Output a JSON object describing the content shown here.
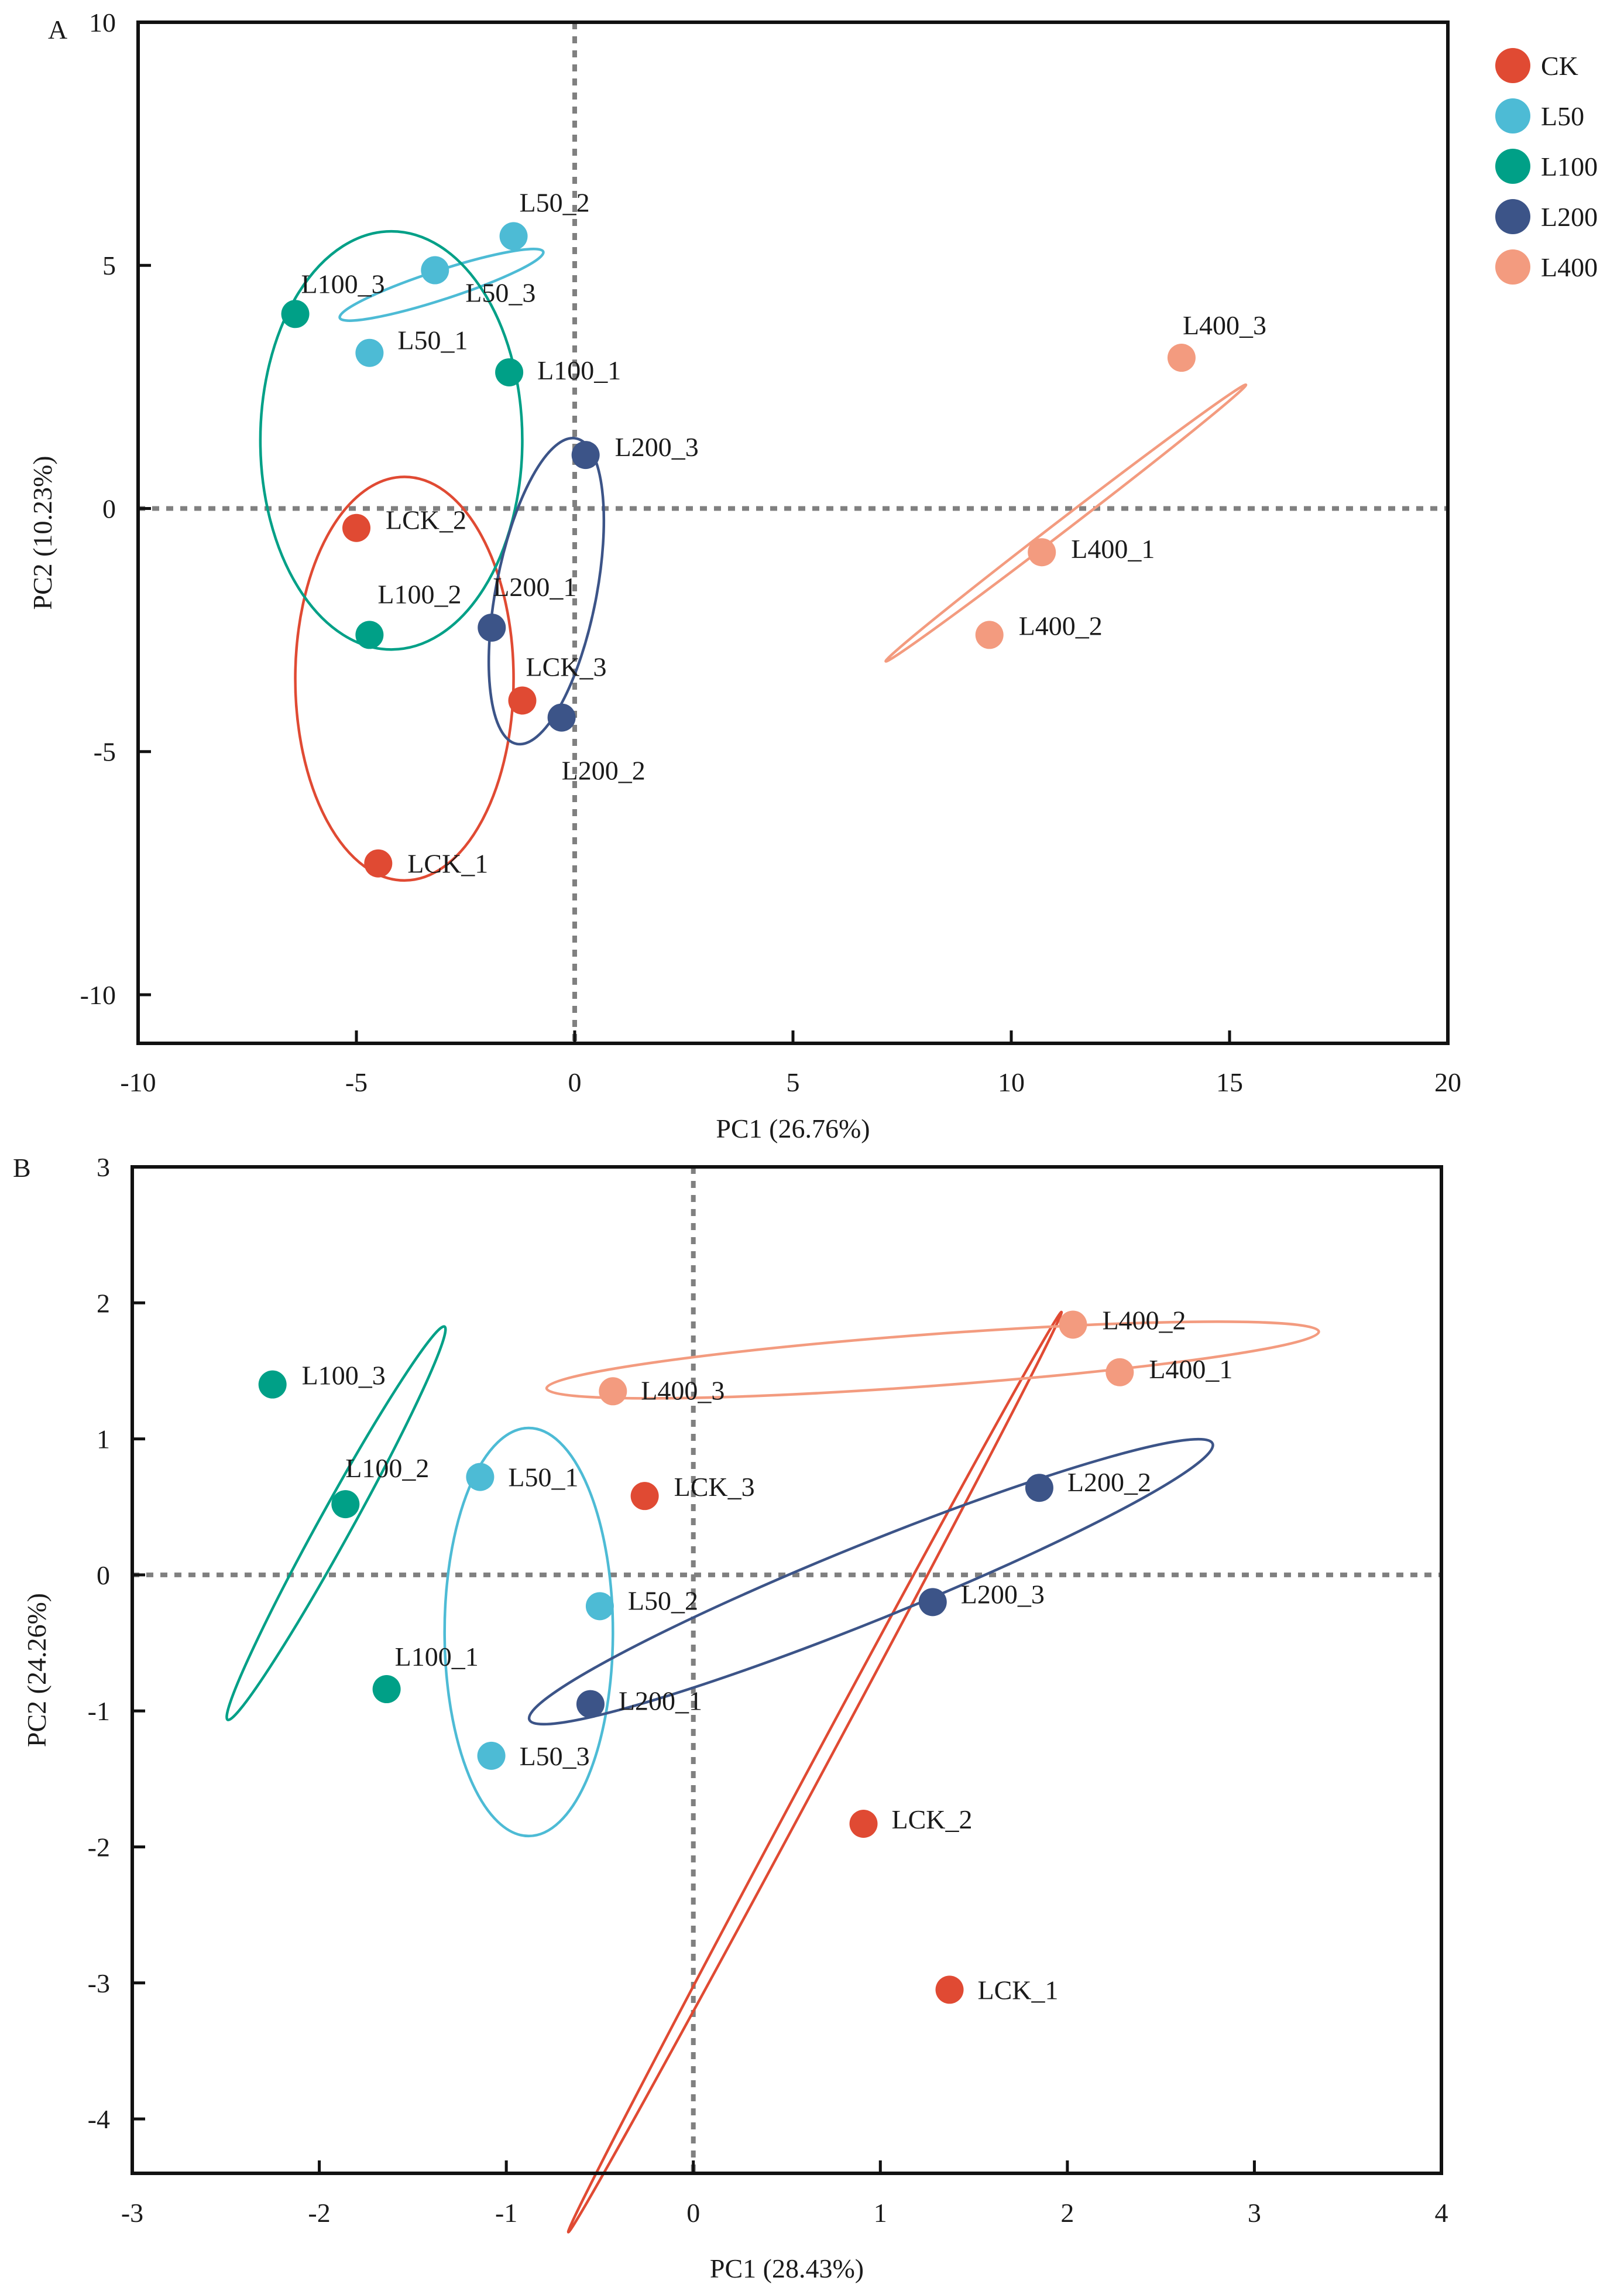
{
  "colors": {
    "CK": "#E04A33",
    "L50": "#4DBBD5",
    "L100": "#00A087",
    "L200": "#3C5488",
    "L400": "#F39B7F"
  },
  "legend": {
    "placement": "right-of-panel-A",
    "items": [
      {
        "group": "CK",
        "label": "CK"
      },
      {
        "group": "L50",
        "label": "L50"
      },
      {
        "group": "L100",
        "label": "L100"
      },
      {
        "group": "L200",
        "label": "L200"
      },
      {
        "group": "L400",
        "label": "L400"
      }
    ]
  },
  "chart_data": [
    {
      "type": "scatter",
      "panel_label": "A",
      "xlabel": "PC1 (26.76%)",
      "ylabel": "PC2 (10.23%)",
      "xlim": [
        -10,
        20
      ],
      "ylim": [
        -11,
        10
      ],
      "xticks": [
        -10,
        -5,
        0,
        5,
        10,
        15,
        20
      ],
      "xtick_labels": [
        "-10",
        "-5",
        "0",
        "5",
        "10",
        "15",
        "20"
      ],
      "yticks": [
        -10,
        -5,
        0,
        5,
        10
      ],
      "ytick_labels": [
        "-10",
        "-5",
        "0",
        "5",
        "10"
      ],
      "reference_lines": {
        "x": 0,
        "y": 0,
        "style": "dotted"
      },
      "points": [
        {
          "label": "LCK_1",
          "group": "CK",
          "x": -4.5,
          "y": -7.3
        },
        {
          "label": "LCK_2",
          "group": "CK",
          "x": -5.0,
          "y": -0.4
        },
        {
          "label": "LCK_3",
          "group": "CK",
          "x": -1.2,
          "y": -3.95
        },
        {
          "label": "L50_1",
          "group": "L50",
          "x": -4.7,
          "y": 3.2
        },
        {
          "label": "L50_2",
          "group": "L50",
          "x": -1.4,
          "y": 5.6
        },
        {
          "label": "L50_3",
          "group": "L50",
          "x": -3.2,
          "y": 4.9
        },
        {
          "label": "L100_1",
          "group": "L100",
          "x": -1.5,
          "y": 2.8
        },
        {
          "label": "L100_2",
          "group": "L100",
          "x": -4.7,
          "y": -2.6
        },
        {
          "label": "L100_3",
          "group": "L100",
          "x": -6.4,
          "y": 4.0
        },
        {
          "label": "L200_1",
          "group": "L200",
          "x": -1.9,
          "y": -2.45
        },
        {
          "label": "L200_2",
          "group": "L200",
          "x": -0.3,
          "y": -4.3
        },
        {
          "label": "L200_3",
          "group": "L200",
          "x": 0.25,
          "y": 1.1
        },
        {
          "label": "L400_1",
          "group": "L400",
          "x": 10.7,
          "y": -0.9
        },
        {
          "label": "L400_2",
          "group": "L400",
          "x": 9.5,
          "y": -2.6
        },
        {
          "label": "L400_3",
          "group": "L400",
          "x": 13.9,
          "y": 3.1
        }
      ],
      "ellipses": [
        {
          "group": "CK",
          "cx": -3.9,
          "cy": -3.5,
          "rx": 2.5,
          "ry": 4.15,
          "angle": 0
        },
        {
          "group": "L50",
          "cx": -3.05,
          "cy": 4.6,
          "rx": 2.45,
          "ry": 0.3,
          "angle": -18
        },
        {
          "group": "L100",
          "cx": -4.2,
          "cy": 1.4,
          "rx": 3.0,
          "ry": 4.3,
          "angle": 0
        },
        {
          "group": "L200",
          "cx": -0.65,
          "cy": -1.7,
          "rx": 1.15,
          "ry": 3.2,
          "angle": 11
        },
        {
          "group": "L400",
          "cx": 11.25,
          "cy": -0.3,
          "rx": 5.2,
          "ry": 0.12,
          "angle": -37.5
        }
      ]
    },
    {
      "type": "scatter",
      "panel_label": "B",
      "xlabel": "PC1 (28.43%)",
      "ylabel": "PC2 (24.26%)",
      "xlim": [
        -3,
        4
      ],
      "ylim": [
        -4.4,
        3
      ],
      "xticks": [
        -3,
        -2,
        -1,
        0,
        1,
        2,
        3,
        4
      ],
      "xtick_labels": [
        "-3",
        "-2",
        "-1",
        "0",
        "1",
        "2",
        "3",
        "4"
      ],
      "yticks": [
        -4,
        -3,
        -2,
        -1,
        0,
        1,
        2,
        3
      ],
      "ytick_labels": [
        "-4",
        "-3",
        "-2",
        "-1",
        "0",
        "1",
        "2",
        "3"
      ],
      "reference_lines": {
        "x": 0,
        "y": 0,
        "style": "dotted"
      },
      "points": [
        {
          "label": "LCK_1",
          "group": "CK",
          "x": 1.37,
          "y": -3.05
        },
        {
          "label": "LCK_2",
          "group": "CK",
          "x": 0.91,
          "y": -1.83
        },
        {
          "label": "LCK_3",
          "group": "CK",
          "x": -0.26,
          "y": 0.58
        },
        {
          "label": "L50_1",
          "group": "L50",
          "x": -1.14,
          "y": 0.72
        },
        {
          "label": "L50_2",
          "group": "L50",
          "x": -0.5,
          "y": -0.23
        },
        {
          "label": "L50_3",
          "group": "L50",
          "x": -1.08,
          "y": -1.33
        },
        {
          "label": "L100_1",
          "group": "L100",
          "x": -1.64,
          "y": -0.84
        },
        {
          "label": "L100_2",
          "group": "L100",
          "x": -1.86,
          "y": 0.52
        },
        {
          "label": "L100_3",
          "group": "L100",
          "x": -2.25,
          "y": 1.4
        },
        {
          "label": "L200_1",
          "group": "L200",
          "x": -0.55,
          "y": -0.95
        },
        {
          "label": "L200_2",
          "group": "L200",
          "x": 1.85,
          "y": 0.64
        },
        {
          "label": "L200_3",
          "group": "L200",
          "x": 1.28,
          "y": -0.2
        },
        {
          "label": "L400_1",
          "group": "L400",
          "x": 2.28,
          "y": 1.49
        },
        {
          "label": "L400_2",
          "group": "L400",
          "x": 2.03,
          "y": 1.84
        },
        {
          "label": "L400_3",
          "group": "L400",
          "x": -0.43,
          "y": 1.35
        }
      ],
      "ellipses": [
        {
          "group": "CK",
          "cx": 0.65,
          "cy": -1.45,
          "rx": 2.79,
          "ry": 0.05,
          "angle": -61.8
        },
        {
          "group": "L50",
          "cx": -0.88,
          "cy": -0.42,
          "rx": 0.45,
          "ry": 1.5,
          "angle": 0
        },
        {
          "group": "L100",
          "cx": -1.91,
          "cy": 0.38,
          "rx": 1.2,
          "ry": 0.12,
          "angle": -61.1
        },
        {
          "group": "L200",
          "cx": 0.95,
          "cy": -0.05,
          "rx": 1.97,
          "ry": 0.28,
          "angle": -22
        },
        {
          "group": "L400",
          "cx": 1.28,
          "cy": 1.58,
          "rx": 2.07,
          "ry": 0.19,
          "angle": -4.2
        }
      ]
    }
  ]
}
